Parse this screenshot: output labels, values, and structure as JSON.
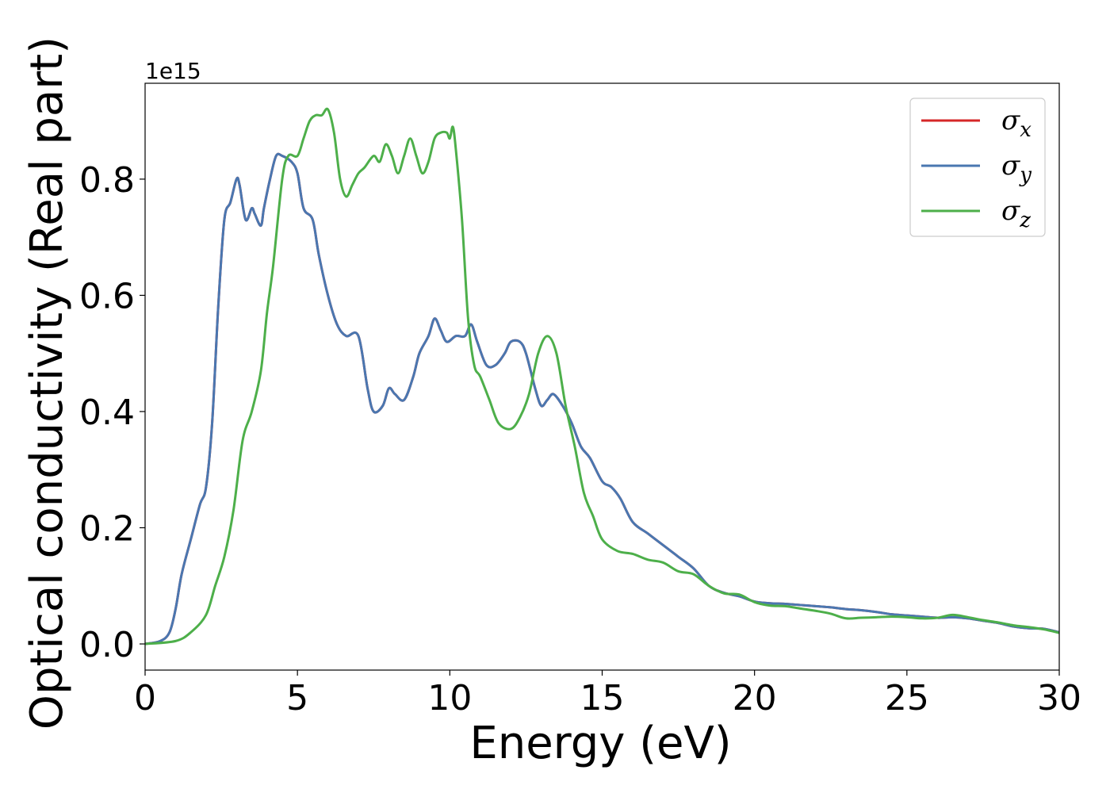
{
  "chart_data": {
    "type": "line",
    "title": "",
    "xlabel": "Energy (eV)",
    "ylabel": "Optical conductivity (Real part)",
    "y_offset_label": "1e15",
    "y_scale": 1000000000000000.0,
    "xlim": [
      0,
      30
    ],
    "ylim": [
      -0.045,
      0.965
    ],
    "xticks": [
      0,
      5,
      10,
      15,
      20,
      25,
      30
    ],
    "xtick_labels": [
      "0",
      "5",
      "10",
      "15",
      "20",
      "25",
      "30"
    ],
    "yticks": [
      0.0,
      0.2,
      0.4,
      0.6,
      0.8
    ],
    "ytick_labels": [
      "0.0",
      "0.2",
      "0.4",
      "0.6",
      "0.8"
    ],
    "grid": false,
    "legend_position": "top-right",
    "series": [
      {
        "name": "σx",
        "legend_symbol": "σ",
        "legend_subscript": "x",
        "color": "#d62728",
        "x": [
          0,
          0.5,
          0.8,
          1.0,
          1.2,
          1.5,
          1.8,
          2.0,
          2.2,
          2.4,
          2.6,
          2.8,
          3.0,
          3.1,
          3.3,
          3.5,
          3.6,
          3.8,
          3.9,
          4.1,
          4.3,
          4.5,
          4.8,
          5.0,
          5.2,
          5.5,
          5.7,
          6.0,
          6.3,
          6.6,
          7.0,
          7.3,
          7.5,
          7.8,
          8.0,
          8.2,
          8.5,
          8.8,
          9.0,
          9.3,
          9.5,
          9.7,
          9.9,
          10.2,
          10.5,
          10.7,
          10.9,
          11.2,
          11.5,
          11.8,
          12.0,
          12.3,
          12.5,
          12.8,
          13.0,
          13.2,
          13.4,
          13.7,
          14.0,
          14.3,
          14.6,
          15.0,
          15.3,
          15.6,
          16.0,
          16.5,
          17.0,
          17.5,
          18.0,
          18.5,
          19.0,
          19.5,
          20.0,
          20.5,
          21.0,
          21.5,
          22.0,
          22.5,
          23.0,
          23.5,
          24.0,
          24.5,
          25.0,
          25.5,
          26.0,
          26.5,
          27.0,
          27.5,
          28.0,
          28.5,
          29.0,
          29.5,
          30.0
        ],
        "y": [
          0.0,
          0.005,
          0.02,
          0.06,
          0.12,
          0.18,
          0.24,
          0.27,
          0.38,
          0.58,
          0.73,
          0.76,
          0.8,
          0.79,
          0.73,
          0.75,
          0.74,
          0.72,
          0.75,
          0.8,
          0.84,
          0.84,
          0.83,
          0.81,
          0.75,
          0.73,
          0.67,
          0.6,
          0.55,
          0.53,
          0.53,
          0.44,
          0.4,
          0.41,
          0.44,
          0.43,
          0.42,
          0.46,
          0.5,
          0.53,
          0.56,
          0.54,
          0.52,
          0.53,
          0.53,
          0.55,
          0.52,
          0.48,
          0.48,
          0.5,
          0.52,
          0.52,
          0.5,
          0.44,
          0.41,
          0.42,
          0.43,
          0.41,
          0.38,
          0.34,
          0.32,
          0.28,
          0.27,
          0.25,
          0.21,
          0.19,
          0.17,
          0.15,
          0.13,
          0.1,
          0.088,
          0.082,
          0.073,
          0.07,
          0.069,
          0.067,
          0.065,
          0.063,
          0.06,
          0.058,
          0.055,
          0.051,
          0.049,
          0.047,
          0.045,
          0.046,
          0.044,
          0.04,
          0.036,
          0.03,
          0.027,
          0.026,
          0.02
        ]
      },
      {
        "name": "σy",
        "legend_symbol": "σ",
        "legend_subscript": "y",
        "color": "#4a77b0",
        "x": [
          0,
          0.5,
          0.8,
          1.0,
          1.2,
          1.5,
          1.8,
          2.0,
          2.2,
          2.4,
          2.6,
          2.8,
          3.0,
          3.1,
          3.3,
          3.5,
          3.6,
          3.8,
          3.9,
          4.1,
          4.3,
          4.5,
          4.8,
          5.0,
          5.2,
          5.5,
          5.7,
          6.0,
          6.3,
          6.6,
          7.0,
          7.3,
          7.5,
          7.8,
          8.0,
          8.2,
          8.5,
          8.8,
          9.0,
          9.3,
          9.5,
          9.7,
          9.9,
          10.2,
          10.5,
          10.7,
          10.9,
          11.2,
          11.5,
          11.8,
          12.0,
          12.3,
          12.5,
          12.8,
          13.0,
          13.2,
          13.4,
          13.7,
          14.0,
          14.3,
          14.6,
          15.0,
          15.3,
          15.6,
          16.0,
          16.5,
          17.0,
          17.5,
          18.0,
          18.5,
          19.0,
          19.5,
          20.0,
          20.5,
          21.0,
          21.5,
          22.0,
          22.5,
          23.0,
          23.5,
          24.0,
          24.5,
          25.0,
          25.5,
          26.0,
          26.5,
          27.0,
          27.5,
          28.0,
          28.5,
          29.0,
          29.5,
          30.0
        ],
        "y": [
          0.0,
          0.005,
          0.02,
          0.06,
          0.12,
          0.18,
          0.24,
          0.27,
          0.38,
          0.58,
          0.73,
          0.76,
          0.8,
          0.79,
          0.73,
          0.75,
          0.74,
          0.72,
          0.75,
          0.8,
          0.84,
          0.84,
          0.83,
          0.81,
          0.75,
          0.73,
          0.67,
          0.6,
          0.55,
          0.53,
          0.53,
          0.44,
          0.4,
          0.41,
          0.44,
          0.43,
          0.42,
          0.46,
          0.5,
          0.53,
          0.56,
          0.54,
          0.52,
          0.53,
          0.53,
          0.55,
          0.52,
          0.48,
          0.48,
          0.5,
          0.52,
          0.52,
          0.5,
          0.44,
          0.41,
          0.42,
          0.43,
          0.41,
          0.38,
          0.34,
          0.32,
          0.28,
          0.27,
          0.25,
          0.21,
          0.19,
          0.17,
          0.15,
          0.13,
          0.1,
          0.088,
          0.082,
          0.073,
          0.07,
          0.069,
          0.067,
          0.065,
          0.063,
          0.06,
          0.058,
          0.055,
          0.051,
          0.049,
          0.047,
          0.045,
          0.046,
          0.044,
          0.04,
          0.036,
          0.03,
          0.027,
          0.026,
          0.02
        ]
      },
      {
        "name": "σz",
        "legend_symbol": "σ",
        "legend_subscript": "z",
        "color": "#4daf4a",
        "x": [
          0,
          1.0,
          1.5,
          2.0,
          2.3,
          2.6,
          2.9,
          3.2,
          3.5,
          3.8,
          4.0,
          4.2,
          4.5,
          4.7,
          5.0,
          5.2,
          5.4,
          5.6,
          5.8,
          6.0,
          6.2,
          6.4,
          6.6,
          6.8,
          7.0,
          7.2,
          7.5,
          7.7,
          7.9,
          8.1,
          8.3,
          8.5,
          8.7,
          8.9,
          9.1,
          9.3,
          9.5,
          9.7,
          9.9,
          10.0,
          10.1,
          10.2,
          10.4,
          10.6,
          10.8,
          11.0,
          11.3,
          11.6,
          12.0,
          12.3,
          12.6,
          12.9,
          13.2,
          13.5,
          13.8,
          14.1,
          14.4,
          14.7,
          15.0,
          15.5,
          16.0,
          16.5,
          17.0,
          17.5,
          18.0,
          18.5,
          19.0,
          19.5,
          20.0,
          20.5,
          21.0,
          21.5,
          22.0,
          22.5,
          23.0,
          23.5,
          24.0,
          24.5,
          25.0,
          25.5,
          26.0,
          26.5,
          27.0,
          27.5,
          28.0,
          28.5,
          29.0,
          29.5,
          30.0
        ],
        "y": [
          0.0,
          0.005,
          0.02,
          0.05,
          0.1,
          0.15,
          0.23,
          0.35,
          0.4,
          0.47,
          0.57,
          0.65,
          0.8,
          0.84,
          0.84,
          0.87,
          0.9,
          0.91,
          0.91,
          0.92,
          0.88,
          0.8,
          0.77,
          0.79,
          0.81,
          0.82,
          0.84,
          0.83,
          0.86,
          0.84,
          0.81,
          0.84,
          0.87,
          0.84,
          0.81,
          0.83,
          0.87,
          0.88,
          0.88,
          0.87,
          0.89,
          0.85,
          0.73,
          0.56,
          0.48,
          0.46,
          0.42,
          0.38,
          0.37,
          0.39,
          0.43,
          0.5,
          0.53,
          0.5,
          0.41,
          0.34,
          0.26,
          0.22,
          0.18,
          0.16,
          0.155,
          0.145,
          0.14,
          0.125,
          0.12,
          0.1,
          0.087,
          0.085,
          0.072,
          0.066,
          0.065,
          0.061,
          0.057,
          0.052,
          0.044,
          0.045,
          0.046,
          0.047,
          0.046,
          0.044,
          0.045,
          0.05,
          0.046,
          0.041,
          0.037,
          0.032,
          0.029,
          0.025,
          0.019
        ]
      }
    ]
  }
}
